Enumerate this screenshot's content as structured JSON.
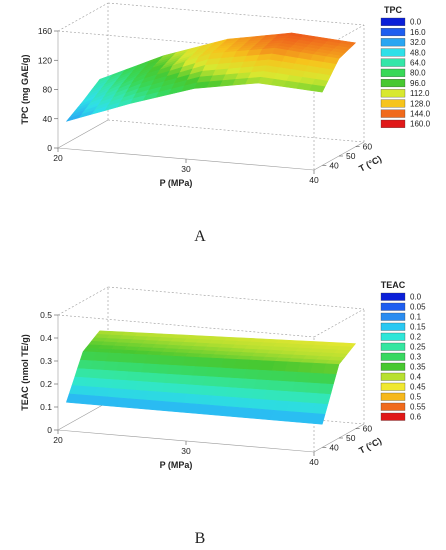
{
  "chart_data": [
    {
      "type": "surface3d",
      "panel_label": "A",
      "xlabel": "P (MPa)",
      "ylabel": "T (°C)",
      "zlabel": "TPC (mg GAE/g)",
      "x_ticks": [
        "20",
        "30",
        "40"
      ],
      "y_ticks": [
        "40",
        "50",
        "60"
      ],
      "z_ticks": [
        "0",
        "40",
        "80",
        "120",
        "160"
      ],
      "xlim": [
        20,
        40
      ],
      "ylim": [
        35,
        65
      ],
      "zlim": [
        0,
        160
      ],
      "legend_title": "TPC",
      "legend_levels": [
        "0.0",
        "16.0",
        "32.0",
        "48.0",
        "64.0",
        "80.0",
        "96.0",
        "112.0",
        "128.0",
        "144.0",
        "160.0"
      ],
      "legend_colors": [
        "#0a1fd8",
        "#1e5ef0",
        "#2aa6f2",
        "#2fe0e8",
        "#34e6a8",
        "#38d858",
        "#48c830",
        "#d8e830",
        "#f6c41c",
        "#f06a1c",
        "#e01818"
      ],
      "surface_x": [
        20,
        25,
        30,
        35,
        40
      ],
      "surface_y": [
        40,
        50,
        60
      ],
      "surface_z": [
        [
          30,
          62,
          90,
          105,
          100
        ],
        [
          45,
          90,
          125,
          140,
          133
        ],
        [
          62,
          102,
          132,
          148,
          142
        ]
      ]
    },
    {
      "type": "surface3d",
      "panel_label": "B",
      "xlabel": "P (MPa)",
      "ylabel": "T (°C)",
      "zlabel": "TEAC (nmol TE/g)",
      "x_ticks": [
        "20",
        "30",
        "40"
      ],
      "y_ticks": [
        "40",
        "50",
        "60"
      ],
      "z_ticks": [
        "0",
        "0.1",
        "0.2",
        "0.3",
        "0.4",
        "0.5"
      ],
      "xlim": [
        20,
        40
      ],
      "ylim": [
        35,
        65
      ],
      "zlim": [
        0,
        0.5
      ],
      "legend_title": "TEAC",
      "legend_levels": [
        "0.0",
        "0.05",
        "0.1",
        "0.15",
        "0.2",
        "0.25",
        "0.3",
        "0.35",
        "0.4",
        "0.45",
        "0.5",
        "0.55",
        "0.6"
      ],
      "legend_colors": [
        "#0a1fd8",
        "#1e5ef0",
        "#2a8cf0",
        "#2ac8f2",
        "#2fe6d8",
        "#34e6a0",
        "#38d860",
        "#48c830",
        "#b8e030",
        "#f0e830",
        "#f6b81c",
        "#f06a1c",
        "#e01818"
      ],
      "surface_x": [
        20,
        25,
        30,
        35,
        40
      ],
      "surface_y": [
        40,
        50,
        60
      ],
      "surface_z": [
        [
          0.1,
          0.1,
          0.1,
          0.1,
          0.1
        ],
        [
          0.28,
          0.29,
          0.3,
          0.31,
          0.32
        ],
        [
          0.33,
          0.34,
          0.35,
          0.36,
          0.37
        ]
      ]
    }
  ]
}
